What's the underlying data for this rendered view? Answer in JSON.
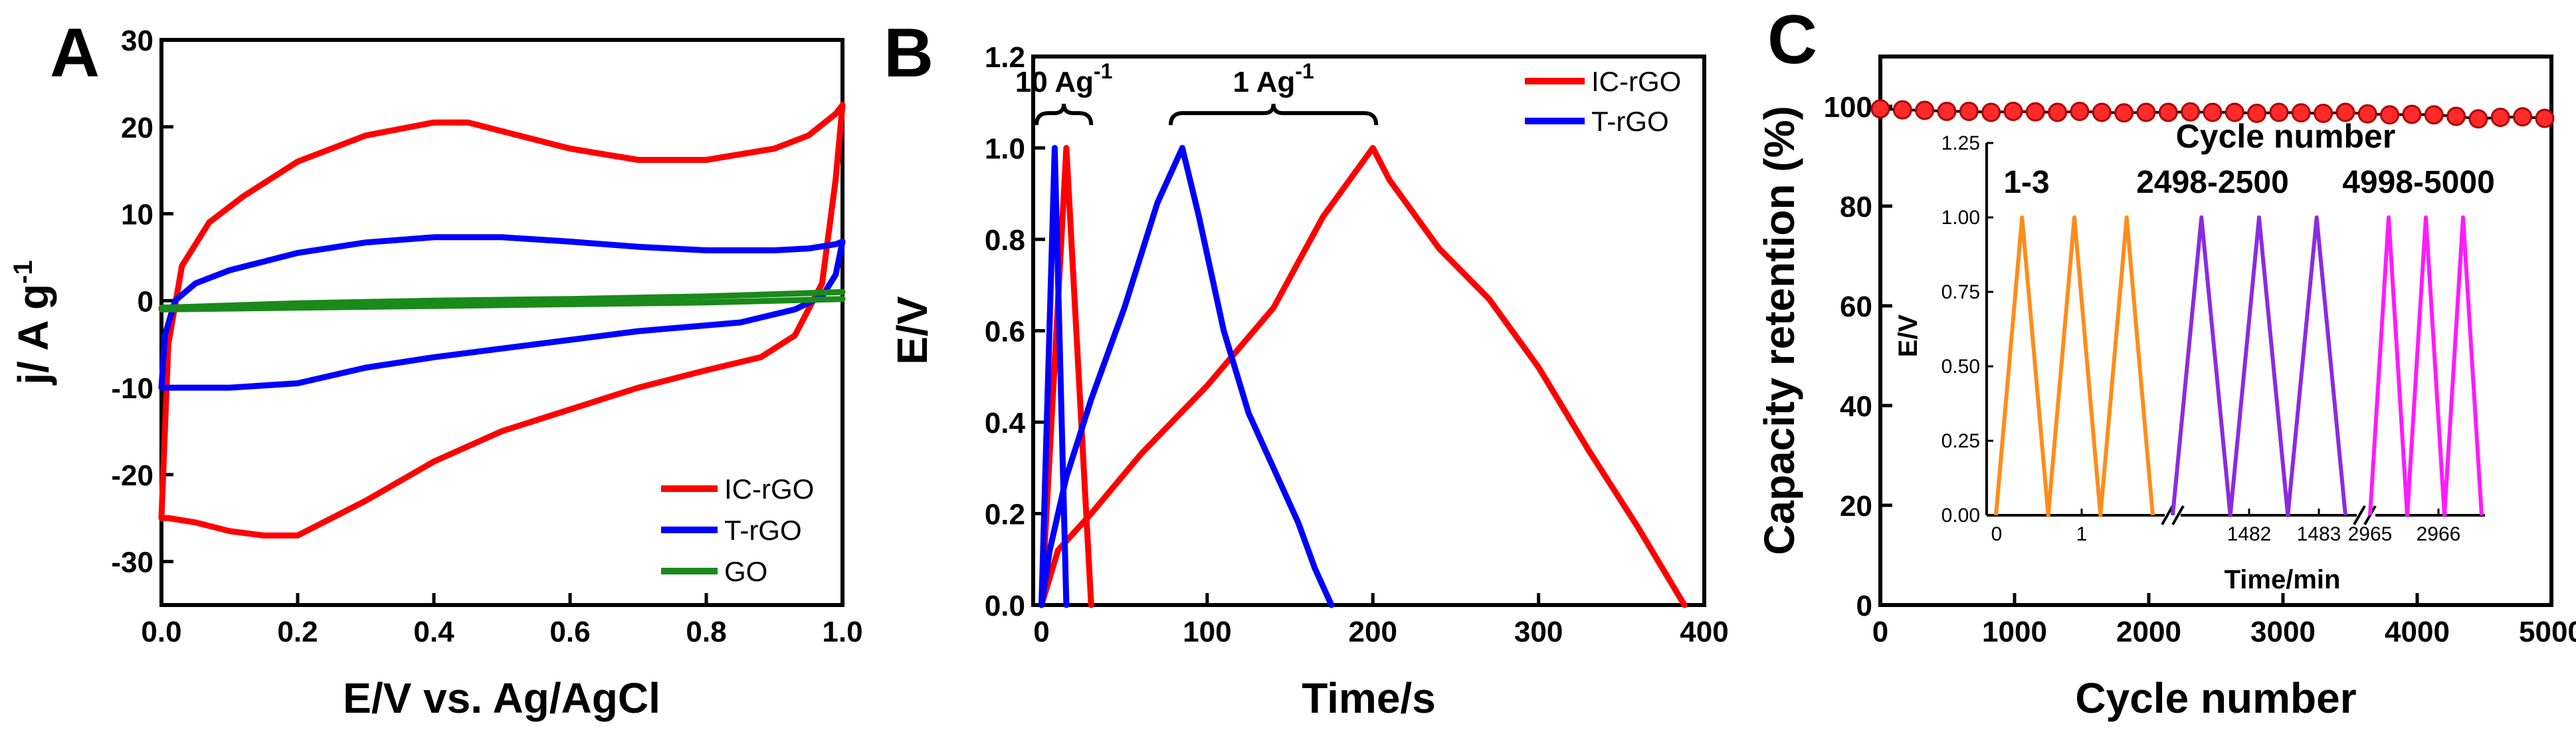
{
  "chart_data": [
    {
      "panel": "A",
      "type": "line",
      "xlabel": "E/V vs. Ag/AgCl",
      "ylabel": "j/ A g",
      "ylabel_superscript": "-1",
      "xlim": [
        0,
        1.0
      ],
      "ylim": [
        -35,
        30
      ],
      "xticks": [
        0.0,
        0.2,
        0.4,
        0.6,
        0.8,
        1.0
      ],
      "xtick_labels": [
        "0.0",
        "0.2",
        "0.4",
        "0.6",
        "0.8",
        "1.0"
      ],
      "yticks": [
        30,
        20,
        10,
        0,
        -10,
        -20,
        -30
      ],
      "ytick_labels": [
        "30",
        "20",
        "10",
        "0",
        "-10",
        "-20",
        "-30"
      ],
      "legend_position": "bottom-right",
      "series": [
        {
          "name": "IC-rGO",
          "color": "#ff0000",
          "anodic": [
            [
              0.0,
              -25
            ],
            [
              0.01,
              -5
            ],
            [
              0.03,
              4
            ],
            [
              0.07,
              9
            ],
            [
              0.12,
              12
            ],
            [
              0.2,
              16
            ],
            [
              0.3,
              19
            ],
            [
              0.4,
              20.5
            ],
            [
              0.45,
              20.5
            ],
            [
              0.5,
              19.5
            ],
            [
              0.6,
              17.5
            ],
            [
              0.7,
              16.2
            ],
            [
              0.8,
              16.2
            ],
            [
              0.9,
              17.5
            ],
            [
              0.95,
              19
            ],
            [
              0.99,
              21.5
            ],
            [
              1.0,
              22.5
            ]
          ],
          "cathodic": [
            [
              1.0,
              22.5
            ],
            [
              0.99,
              14
            ],
            [
              0.97,
              2
            ],
            [
              0.93,
              -4
            ],
            [
              0.88,
              -6.5
            ],
            [
              0.8,
              -8
            ],
            [
              0.7,
              -10
            ],
            [
              0.6,
              -12.5
            ],
            [
              0.5,
              -15
            ],
            [
              0.4,
              -18.5
            ],
            [
              0.3,
              -23
            ],
            [
              0.2,
              -27
            ],
            [
              0.15,
              -27
            ],
            [
              0.1,
              -26.5
            ],
            [
              0.05,
              -25.5
            ],
            [
              0.01,
              -25
            ],
            [
              0.0,
              -25
            ]
          ]
        },
        {
          "name": "T-rGO",
          "color": "#0000ff",
          "anodic": [
            [
              0.0,
              -10
            ],
            [
              0.005,
              -4
            ],
            [
              0.02,
              0
            ],
            [
              0.05,
              2
            ],
            [
              0.1,
              3.5
            ],
            [
              0.2,
              5.5
            ],
            [
              0.3,
              6.7
            ],
            [
              0.4,
              7.3
            ],
            [
              0.5,
              7.3
            ],
            [
              0.6,
              6.8
            ],
            [
              0.7,
              6.2
            ],
            [
              0.8,
              5.8
            ],
            [
              0.9,
              5.8
            ],
            [
              0.95,
              6
            ],
            [
              0.99,
              6.5
            ],
            [
              1.0,
              6.8
            ]
          ],
          "cathodic": [
            [
              1.0,
              6.8
            ],
            [
              0.99,
              3
            ],
            [
              0.97,
              0.5
            ],
            [
              0.93,
              -1
            ],
            [
              0.85,
              -2.5
            ],
            [
              0.7,
              -3.5
            ],
            [
              0.6,
              -4.5
            ],
            [
              0.5,
              -5.5
            ],
            [
              0.4,
              -6.5
            ],
            [
              0.3,
              -7.7
            ],
            [
              0.2,
              -9.5
            ],
            [
              0.1,
              -10
            ],
            [
              0.02,
              -10
            ],
            [
              0.0,
              -10
            ]
          ]
        },
        {
          "name": "GO",
          "color": "#1a8a1a",
          "anodic": [
            [
              0.0,
              -0.8
            ],
            [
              0.2,
              -0.3
            ],
            [
              0.4,
              0.0
            ],
            [
              0.6,
              0.2
            ],
            [
              0.8,
              0.5
            ],
            [
              1.0,
              1.0
            ]
          ],
          "cathodic": [
            [
              1.0,
              0.2
            ],
            [
              0.8,
              -0.2
            ],
            [
              0.6,
              -0.4
            ],
            [
              0.4,
              -0.6
            ],
            [
              0.2,
              -0.8
            ],
            [
              0.0,
              -1.0
            ]
          ]
        }
      ]
    },
    {
      "panel": "B",
      "type": "line",
      "xlabel": "Time/s",
      "ylabel": "E/V",
      "xlim": [
        -5,
        400
      ],
      "ylim": [
        0.0,
        1.2
      ],
      "xticks": [
        0,
        100,
        200,
        300,
        400
      ],
      "xtick_labels": [
        "0",
        "100",
        "200",
        "300",
        "400"
      ],
      "yticks": [
        0.0,
        0.2,
        0.4,
        0.6,
        0.8,
        1.0,
        1.2
      ],
      "ytick_labels": [
        "0.0",
        "0.2",
        "0.4",
        "0.6",
        "0.8",
        "1.0",
        "1.2"
      ],
      "legend_position": "top-right",
      "annotations": [
        {
          "text": "10 Ag",
          "superscript": "-1",
          "x_from": -3,
          "x_to": 30,
          "y": 1.05
        },
        {
          "text": "1 Ag",
          "superscript": "-1",
          "x_from": 78,
          "x_to": 202,
          "y": 1.05
        }
      ],
      "series": [
        {
          "name": "IC-rGO",
          "color": "#ff0000",
          "segment": "1 A/g",
          "points": [
            [
              0,
              0.0
            ],
            [
              10,
              0.12
            ],
            [
              30,
              0.2
            ],
            [
              60,
              0.33
            ],
            [
              100,
              0.48
            ],
            [
              140,
              0.65
            ],
            [
              170,
              0.85
            ],
            [
              200,
              1.0
            ],
            [
              210,
              0.93
            ],
            [
              240,
              0.78
            ],
            [
              270,
              0.67
            ],
            [
              300,
              0.52
            ],
            [
              330,
              0.34
            ],
            [
              360,
              0.17
            ],
            [
              388,
              0.0
            ]
          ]
        },
        {
          "name": "IC-rGO",
          "color": "#ff0000",
          "segment": "10 A/g",
          "points": [
            [
              0,
              0.0
            ],
            [
              15,
              1.0
            ],
            [
              30,
              0.0
            ]
          ]
        },
        {
          "name": "T-rGO",
          "color": "#0000ff",
          "segment": "1 A/g",
          "points": [
            [
              0,
              0.0
            ],
            [
              5,
              0.12
            ],
            [
              15,
              0.28
            ],
            [
              30,
              0.45
            ],
            [
              50,
              0.65
            ],
            [
              70,
              0.88
            ],
            [
              85,
              1.0
            ],
            [
              95,
              0.85
            ],
            [
              110,
              0.6
            ],
            [
              125,
              0.42
            ],
            [
              140,
              0.3
            ],
            [
              155,
              0.18
            ],
            [
              165,
              0.08
            ],
            [
              175,
              0.0
            ]
          ]
        },
        {
          "name": "T-rGO",
          "color": "#0000ff",
          "segment": "10 A/g",
          "points": [
            [
              0,
              0.0
            ],
            [
              8,
              1.0
            ],
            [
              15,
              0.0
            ]
          ]
        }
      ]
    },
    {
      "panel": "C",
      "type": "scatter",
      "xlabel": "Cycle number",
      "ylabel": "Capacity retention (%)",
      "xlim": [
        0,
        5000
      ],
      "ylim": [
        0,
        110
      ],
      "xticks": [
        0,
        1000,
        2000,
        3000,
        4000,
        5000
      ],
      "xtick_labels": [
        "0",
        "1000",
        "2000",
        "3000",
        "4000",
        "5000"
      ],
      "yticks": [
        0,
        20,
        40,
        60,
        80,
        100
      ],
      "ytick_labels": [
        "0",
        "20",
        "40",
        "60",
        "80",
        "100"
      ],
      "series": [
        {
          "name": "Capacity retention",
          "color": "#ff2a2a",
          "points": [
            [
              0,
              99.5
            ],
            [
              165,
              99.3
            ],
            [
              330,
              99.2
            ],
            [
              495,
              99.0
            ],
            [
              660,
              99.0
            ],
            [
              825,
              98.8
            ],
            [
              990,
              99.0
            ],
            [
              1155,
              98.9
            ],
            [
              1320,
              98.8
            ],
            [
              1485,
              99.0
            ],
            [
              1650,
              98.8
            ],
            [
              1815,
              98.7
            ],
            [
              1980,
              98.8
            ],
            [
              2145,
              98.8
            ],
            [
              2310,
              98.9
            ],
            [
              2475,
              98.8
            ],
            [
              2640,
              98.8
            ],
            [
              2805,
              98.6
            ],
            [
              2970,
              98.8
            ],
            [
              3135,
              98.7
            ],
            [
              3300,
              98.6
            ],
            [
              3465,
              98.8
            ],
            [
              3630,
              98.5
            ],
            [
              3795,
              98.3
            ],
            [
              3960,
              98.4
            ],
            [
              4125,
              98.3
            ],
            [
              4290,
              98.0
            ],
            [
              4455,
              97.5
            ],
            [
              4620,
              97.8
            ],
            [
              4785,
              97.9
            ],
            [
              4950,
              97.6
            ]
          ]
        }
      ],
      "inset": {
        "title": "Cycle number",
        "xlabel": "Time/min",
        "ylabel": "E/V",
        "ylim": [
          0.0,
          1.25
        ],
        "yticks": [
          0.0,
          0.25,
          0.5,
          0.75,
          1.0,
          1.25
        ],
        "ytick_labels": [
          "0.00",
          "0.25",
          "0.50",
          "0.75",
          "1.00",
          "1.25"
        ],
        "xtick_labels": [
          "0",
          "1",
          "1482",
          "1483",
          "2965",
          "2966"
        ],
        "groups": [
          {
            "label": "1-3",
            "color": "#ff8c1a",
            "cycles": 3
          },
          {
            "label": "2498-2500",
            "color": "#8a2be2",
            "cycles": 3
          },
          {
            "label": "4998-5000",
            "color": "#ff1aff",
            "cycles": 3
          }
        ]
      }
    }
  ]
}
